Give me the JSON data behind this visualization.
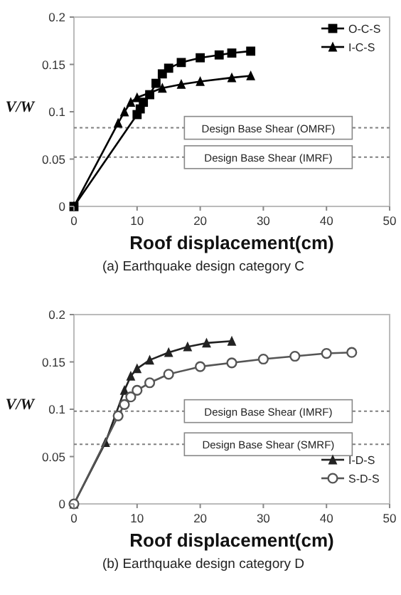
{
  "chart_data": [
    {
      "type": "line",
      "ylabel": "V/W",
      "xlabel": "Roof displacement(cm)",
      "annotations": [
        "(a) Earthquake design category C"
      ],
      "xlim": [
        0,
        50
      ],
      "xticks": [
        0,
        10,
        20,
        30,
        40,
        50
      ],
      "ylim": [
        0,
        0.2
      ],
      "yticks": [
        0,
        0.05,
        0.1,
        0.15,
        0.2
      ],
      "legend": "top right",
      "line_style": "solid",
      "ref_lines": [
        {
          "axis": "y",
          "value": 0.083,
          "label": "Design Base Shear (OMRF)",
          "line_style": "dotted",
          "color": "#808080"
        },
        {
          "axis": "y",
          "value": 0.052,
          "label": "Design Base Shear (IMRF)",
          "line_style": "dotted",
          "color": "#808080"
        }
      ],
      "series": [
        {
          "name": "O-C-S",
          "color": "#000000",
          "marker": "square",
          "x": [
            0,
            10,
            10.5,
            11,
            12,
            13,
            14,
            15,
            17,
            20,
            23,
            25,
            28
          ],
          "values": [
            0,
            0.097,
            0.103,
            0.11,
            0.118,
            0.13,
            0.14,
            0.146,
            0.152,
            0.157,
            0.16,
            0.162,
            0.164
          ]
        },
        {
          "name": "I-C-S",
          "color": "#000000",
          "marker": "triangle",
          "x": [
            0,
            7,
            8,
            9,
            10,
            14,
            17,
            20,
            25,
            28
          ],
          "values": [
            0,
            0.088,
            0.1,
            0.11,
            0.115,
            0.125,
            0.129,
            0.132,
            0.136,
            0.138
          ]
        }
      ]
    },
    {
      "type": "line",
      "ylabel": "V/W",
      "xlabel": "Roof displacement(cm)",
      "annotations": [
        "(b) Earthquake design category D"
      ],
      "xlim": [
        0,
        50
      ],
      "xticks": [
        0,
        10,
        20,
        30,
        40,
        50
      ],
      "ylim": [
        0,
        0.2
      ],
      "yticks": [
        0,
        0.05,
        0.1,
        0.15,
        0.2
      ],
      "legend": "bottom right",
      "line_style": "solid",
      "ref_lines": [
        {
          "axis": "y",
          "value": 0.098,
          "label": "Design Base Shear (IMRF)",
          "line_style": "dotted",
          "color": "#808080"
        },
        {
          "axis": "y",
          "value": 0.063,
          "label": "Design Base Shear (SMRF)",
          "line_style": "dotted",
          "color": "#808080"
        }
      ],
      "series": [
        {
          "name": "I-D-S",
          "color": "#222222",
          "marker": "triangle",
          "x": [
            0,
            5,
            8,
            9,
            10,
            12,
            15,
            18,
            21,
            25
          ],
          "values": [
            0,
            0.065,
            0.12,
            0.135,
            0.143,
            0.152,
            0.16,
            0.166,
            0.17,
            0.172
          ]
        },
        {
          "name": "S-D-S",
          "color": "#555555",
          "marker": "circle",
          "x": [
            0,
            7,
            8,
            9,
            10,
            12,
            15,
            20,
            25,
            30,
            35,
            40,
            44
          ],
          "values": [
            0,
            0.093,
            0.105,
            0.113,
            0.12,
            0.128,
            0.137,
            0.145,
            0.149,
            0.153,
            0.156,
            0.159,
            0.16
          ]
        }
      ]
    }
  ]
}
